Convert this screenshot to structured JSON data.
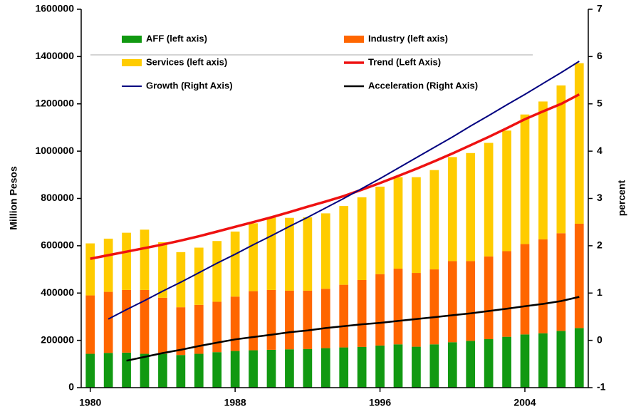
{
  "chart_data": {
    "type": "bar-line",
    "y_label": "Million Pesos",
    "y2_label": "percent",
    "x": [
      1980,
      1981,
      1982,
      1983,
      1984,
      1985,
      1986,
      1987,
      1988,
      1989,
      1990,
      1991,
      1992,
      1993,
      1994,
      1995,
      1996,
      1997,
      1998,
      1999,
      2000,
      2001,
      2002,
      2003,
      2004,
      2005,
      2006,
      2007
    ],
    "xlim": [
      1979.5,
      2007.5
    ],
    "xticks": [
      1980,
      1988,
      1996,
      2004
    ],
    "ylim": [
      0,
      1600000
    ],
    "yticks": [
      0,
      200000,
      400000,
      600000,
      800000,
      1000000,
      1200000,
      1400000,
      1600000
    ],
    "y2lim": [
      -1,
      7
    ],
    "y2ticks": [
      -1,
      0,
      1,
      2,
      3,
      4,
      5,
      6,
      7
    ],
    "series": [
      {
        "name": "AFF (left axis)",
        "kind": "bar",
        "color": "#119911",
        "values": [
          143000,
          147000,
          148000,
          143000,
          143000,
          138000,
          143000,
          150000,
          155000,
          158000,
          160000,
          162000,
          163000,
          167000,
          170000,
          172000,
          178000,
          183000,
          173000,
          183000,
          192000,
          198000,
          205000,
          215000,
          225000,
          230000,
          240000,
          252000
        ]
      },
      {
        "name": "Industry (left axis)",
        "kind": "bar",
        "color": "#ff6600",
        "values": [
          247000,
          258000,
          265000,
          270000,
          237000,
          202000,
          207000,
          213000,
          230000,
          250000,
          253000,
          248000,
          247000,
          251000,
          265000,
          283000,
          302000,
          320000,
          312000,
          317000,
          343000,
          337000,
          350000,
          362000,
          382000,
          397000,
          413000,
          441000
        ]
      },
      {
        "name": "Services (left axis)",
        "kind": "bar",
        "color": "#ffcc00",
        "values": [
          220000,
          225000,
          242000,
          255000,
          235000,
          233000,
          242000,
          257000,
          275000,
          287000,
          307000,
          308000,
          310000,
          319000,
          333000,
          350000,
          370000,
          387000,
          405000,
          420000,
          440000,
          457000,
          480000,
          510000,
          548000,
          583000,
          625000,
          679000
        ]
      },
      {
        "name": "Trend (Left Axis)",
        "kind": "line",
        "color": "#ee1111",
        "width": 3.5,
        "values": [
          545000,
          560000,
          575000,
          590000,
          605000,
          622000,
          640000,
          660000,
          680000,
          700000,
          720000,
          742000,
          765000,
          787000,
          810000,
          837000,
          865000,
          895000,
          925000,
          957000,
          990000,
          1025000,
          1060000,
          1097000,
          1135000,
          1168000,
          1200000,
          1240000
        ]
      },
      {
        "name": "Growth (Right Axis)",
        "kind": "line",
        "axis": "y2",
        "color": "#000080",
        "width": 2,
        "values": [
          null,
          0.45,
          0.65,
          0.84,
          1.04,
          1.23,
          1.43,
          1.63,
          1.82,
          2.02,
          2.21,
          2.41,
          2.6,
          2.8,
          3.0,
          3.21,
          3.42,
          3.64,
          3.86,
          4.08,
          4.3,
          4.53,
          4.75,
          4.98,
          5.2,
          5.43,
          5.66,
          5.9
        ]
      },
      {
        "name": "Acceleration (Right Axis)",
        "kind": "line",
        "axis": "y2",
        "color": "#000000",
        "width": 2.5,
        "values": [
          null,
          null,
          -0.43,
          -0.35,
          -0.27,
          -0.2,
          -0.12,
          -0.05,
          0.02,
          0.07,
          0.12,
          0.17,
          0.21,
          0.26,
          0.3,
          0.34,
          0.37,
          0.41,
          0.45,
          0.49,
          0.53,
          0.57,
          0.62,
          0.67,
          0.72,
          0.77,
          0.83,
          0.92
        ]
      }
    ]
  }
}
